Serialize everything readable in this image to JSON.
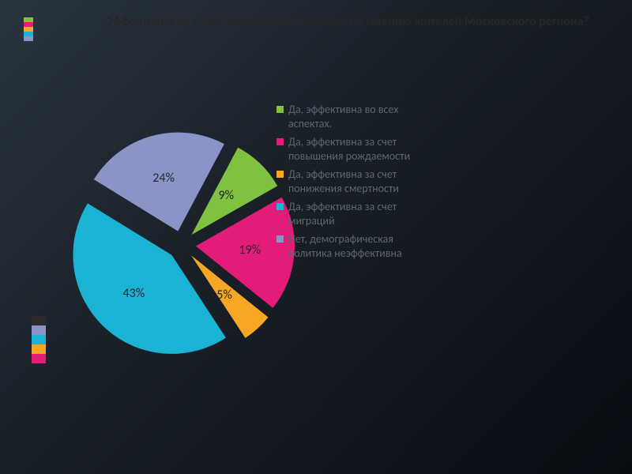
{
  "title": "Эффективна ли демографическая политика по мнению жителей Московского региона?",
  "chart": {
    "type": "pie",
    "exploded": true,
    "start_angle_deg": -62,
    "direction": "clockwise",
    "background": "transparent",
    "title_color": "#262626",
    "title_fontsize": 16,
    "label_color": "#262626",
    "label_fontsize": 16,
    "legend_color": "#5c6770",
    "legend_fontsize": 14,
    "slices": [
      {
        "label": "Да, эффективна во всех аспектах.",
        "value": 9,
        "display": "9%",
        "color": "#7fc241"
      },
      {
        "label": "Да, эффективна за счет повышения рождаемости",
        "value": 19,
        "display": "19%",
        "color": "#e31c79"
      },
      {
        "label": "Да, эффективна за счет понижения смертности",
        "value": 5,
        "display": "5%",
        "color": "#f5a623"
      },
      {
        "label": "Да, эффективна за счет миграций",
        "value": 43,
        "display": "43%",
        "color": "#1bb3d3"
      },
      {
        "label": "Нет, демографическая политика неэффективна",
        "value": 24,
        "display": "24%",
        "color": "#8a94c6"
      }
    ],
    "side_accent_colors": [
      "#7fc241",
      "#e31c79",
      "#f5a623",
      "#1bb3d3",
      "#8a94c6"
    ],
    "side_bars_colors": [
      "#2a2a2a",
      "#8a94c6",
      "#1bb3d3",
      "#f5a623",
      "#e31c79"
    ]
  }
}
